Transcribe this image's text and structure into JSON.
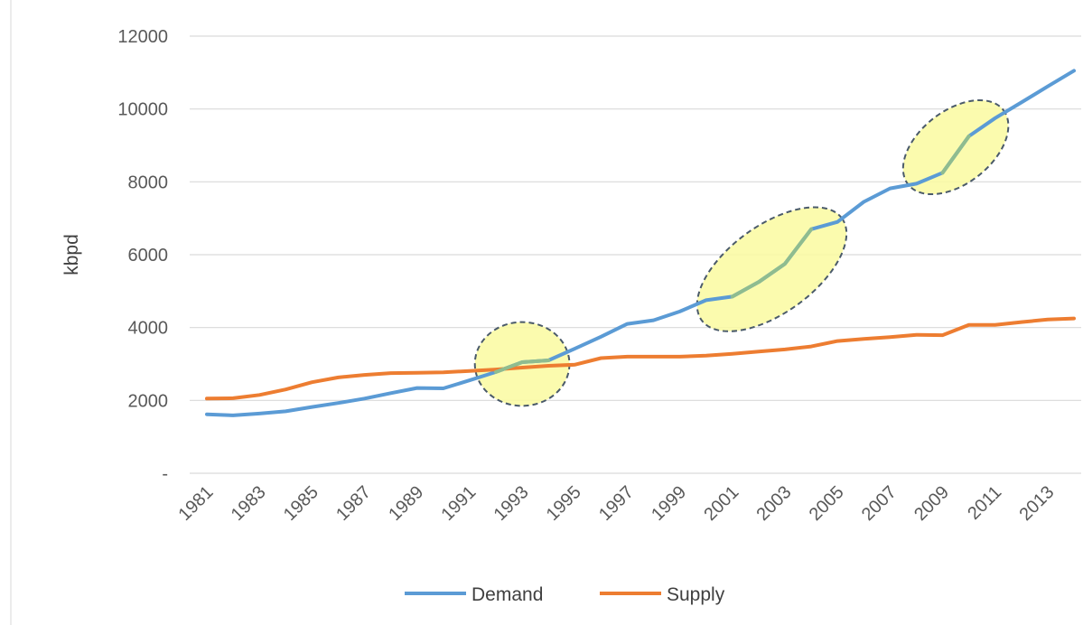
{
  "chart_data": {
    "type": "line",
    "ylabel": "kbpd",
    "xlabel": "",
    "ylim": [
      0,
      12000
    ],
    "y_ticks": [
      {
        "value": 0,
        "label": "-"
      },
      {
        "value": 2000,
        "label": "2000"
      },
      {
        "value": 4000,
        "label": "4000"
      },
      {
        "value": 6000,
        "label": "6000"
      },
      {
        "value": 8000,
        "label": "8000"
      },
      {
        "value": 10000,
        "label": "10000"
      },
      {
        "value": 12000,
        "label": "12000"
      }
    ],
    "x_tick_labels": [
      "1981",
      "1983",
      "1985",
      "1987",
      "1989",
      "1991",
      "1993",
      "1995",
      "1997",
      "1999",
      "2001",
      "2003",
      "2005",
      "2007",
      "2009",
      "2011",
      "2013"
    ],
    "x": [
      1981,
      1982,
      1983,
      1984,
      1985,
      1986,
      1987,
      1988,
      1989,
      1990,
      1991,
      1992,
      1993,
      1994,
      1995,
      1996,
      1997,
      1998,
      1999,
      2000,
      2001,
      2002,
      2003,
      2004,
      2005,
      2006,
      2007,
      2008,
      2009,
      2010,
      2011,
      2012,
      2013,
      2014
    ],
    "grid": true,
    "legend": "bottom",
    "series": [
      {
        "name": "Demand",
        "color": "#5b9bd5",
        "values": [
          1620,
          1590,
          1640,
          1700,
          1820,
          1930,
          2050,
          2200,
          2340,
          2330,
          2550,
          2780,
          3050,
          3100,
          3420,
          3750,
          4100,
          4200,
          4440,
          4750,
          4850,
          5250,
          5750,
          6700,
          6900,
          7450,
          7820,
          7950,
          8250,
          9250,
          9750,
          10180,
          10620,
          11050
        ]
      },
      {
        "name": "Supply",
        "color": "#ed7d31",
        "values": [
          2050,
          2060,
          2150,
          2300,
          2500,
          2630,
          2700,
          2750,
          2760,
          2770,
          2810,
          2850,
          2900,
          2950,
          2980,
          3160,
          3200,
          3200,
          3200,
          3230,
          3280,
          3340,
          3400,
          3480,
          3630,
          3690,
          3740,
          3800,
          3790,
          4070,
          4070,
          4150,
          4220,
          4250
        ]
      }
    ],
    "highlight_series_color": "#8fbc8f",
    "highlights": [
      {
        "x_start": 1992,
        "x_end": 1994,
        "y_center": 3000,
        "x_radius": 1.8,
        "y_radius": 1150,
        "angle": 0
      },
      {
        "x_start": 2001,
        "x_end": 2004,
        "y_center": 5600,
        "x_radius": 3.3,
        "y_radius": 1200,
        "angle": -36
      },
      {
        "x_start": 2009,
        "x_end": 2010,
        "y_center": 8950,
        "x_radius": 2.3,
        "y_radius": 1000,
        "angle": -38
      }
    ],
    "highlight_fill": "#fafaa0",
    "highlight_stroke": "#4a5a6a"
  }
}
